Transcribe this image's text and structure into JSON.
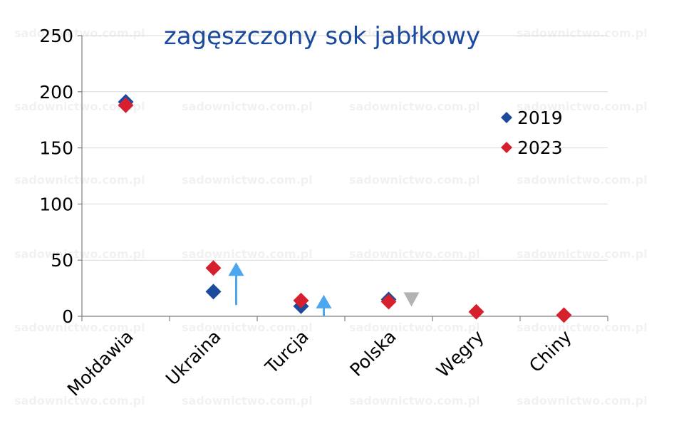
{
  "chart_data": {
    "type": "scatter",
    "title": "zagęszczony sok jabłkowy",
    "categories": [
      "Mołdawia",
      "Ukraina",
      "Turcja",
      "Polska",
      "Węgry",
      "Chiny"
    ],
    "ylim": [
      0,
      250
    ],
    "yticks": [
      0,
      50,
      100,
      150,
      200,
      250
    ],
    "grid": true,
    "legend_position": "right",
    "series": [
      {
        "name": "2019",
        "color": "#1c4a9c",
        "values": [
          191,
          22,
          9,
          15,
          null,
          null
        ]
      },
      {
        "name": "2023",
        "color": "#d7202e",
        "values": [
          188,
          43,
          14,
          13,
          4,
          1
        ]
      }
    ],
    "change_markers": [
      {
        "category": "Ukraina",
        "direction": "up",
        "color": "#4da6f0"
      },
      {
        "category": "Turcja",
        "direction": "up",
        "color": "#4da6f0"
      },
      {
        "category": "Polska",
        "direction": "down",
        "color": "#b3b3b3"
      }
    ],
    "title_color": "#1c4a9c"
  },
  "watermark": "sadownictwo.com.pl"
}
